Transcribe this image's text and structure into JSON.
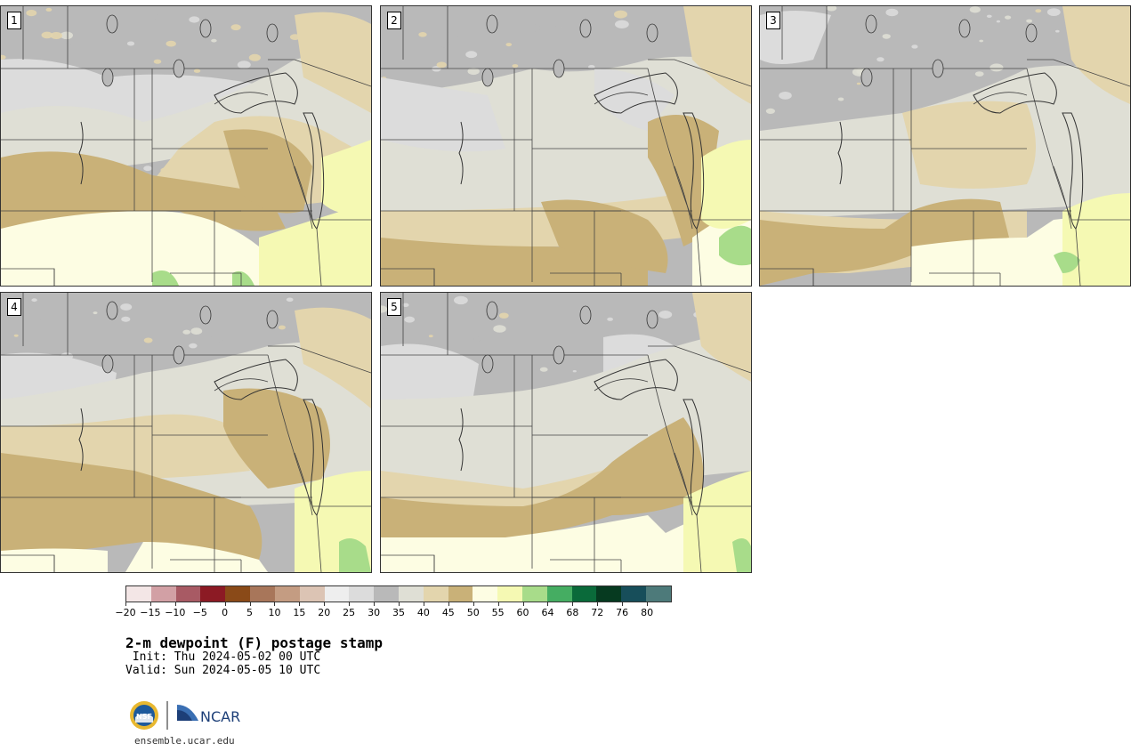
{
  "panels": [
    {
      "label": "1"
    },
    {
      "label": "2"
    },
    {
      "label": "3"
    },
    {
      "label": "4"
    },
    {
      "label": "5"
    }
  ],
  "colorbar": {
    "colors": [
      "#f3e6e6",
      "#d2a0a5",
      "#a85a64",
      "#8c1a24",
      "#8a4a18",
      "#a8765a",
      "#c49c82",
      "#dcc4b4",
      "#eeeeee",
      "#dcdcdc",
      "#b9b9b9",
      "#dfdfd5",
      "#e3d5ad",
      "#c9b178",
      "#fdfde3",
      "#f5f9b3",
      "#a8dc8a",
      "#45ad62",
      "#0a6a3a",
      "#063a20",
      "#174e5a",
      "#4d7a7a"
    ],
    "tick_labels": [
      "−20",
      "−15",
      "−10",
      "−5",
      "0",
      "5",
      "10",
      "15",
      "20",
      "25",
      "30",
      "35",
      "40",
      "45",
      "50",
      "55",
      "60",
      "64",
      "68",
      "72",
      "76",
      "80"
    ]
  },
  "title": "2-m dewpoint (F) postage stamp",
  "init": " Init: Thu 2024-05-02 00 UTC",
  "valid": "Valid: Sun 2024-05-05 10 UTC",
  "logos": {
    "nsf": "NSF",
    "ncar": "NCAR"
  },
  "site": "ensemble.ucar.edu"
}
